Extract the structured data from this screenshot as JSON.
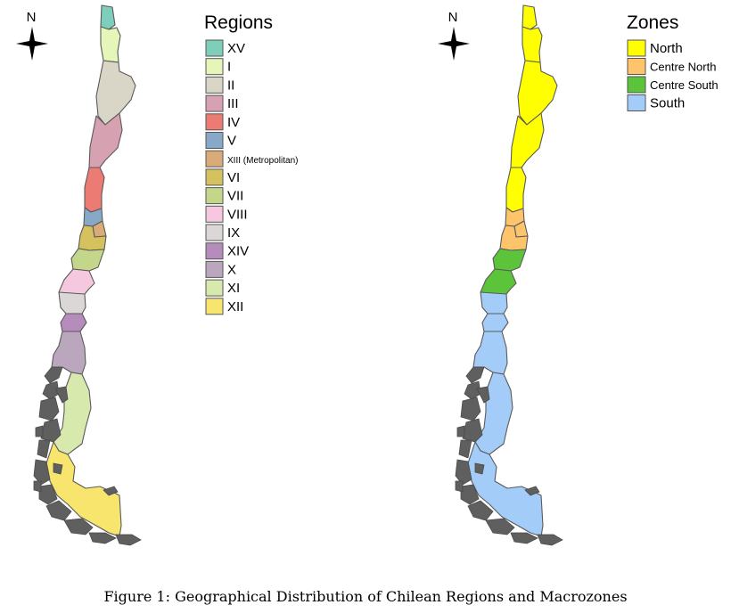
{
  "left_map": {
    "legend_title": "Regions",
    "north_label": "N",
    "legend": [
      {
        "label": "XV",
        "color": "#7fcdbb"
      },
      {
        "label": "I",
        "color": "#e6f5b8"
      },
      {
        "label": "II",
        "color": "#d9d6c8"
      },
      {
        "label": "III",
        "color": "#d6a1b0"
      },
      {
        "label": "IV",
        "color": "#ec7b73"
      },
      {
        "label": "V",
        "color": "#88a8c8"
      },
      {
        "label": "XIII (Metropolitan)",
        "color": "#d9ab78"
      },
      {
        "label": "VI",
        "color": "#d5c25e"
      },
      {
        "label": "VII",
        "color": "#c3d68a"
      },
      {
        "label": "VIII",
        "color": "#f6c8e0"
      },
      {
        "label": "IX",
        "color": "#dcd7d7"
      },
      {
        "label": "XIV",
        "color": "#b58cbc"
      },
      {
        "label": "X",
        "color": "#bba7bd"
      },
      {
        "label": "XI",
        "color": "#d8e9ae"
      },
      {
        "label": "XII",
        "color": "#f8e56e"
      }
    ]
  },
  "right_map": {
    "legend_title": "Zones",
    "north_label": "N",
    "legend": [
      {
        "label": "North",
        "color": "#ffff00"
      },
      {
        "label": "Centre North",
        "color": "#fdc46c"
      },
      {
        "label": "Centre South",
        "color": "#5cc43a"
      },
      {
        "label": "South",
        "color": "#a4ccf9"
      }
    ]
  },
  "caption": "Figure 1: Geographical Distribution of Chilean Regions and Macrozones"
}
